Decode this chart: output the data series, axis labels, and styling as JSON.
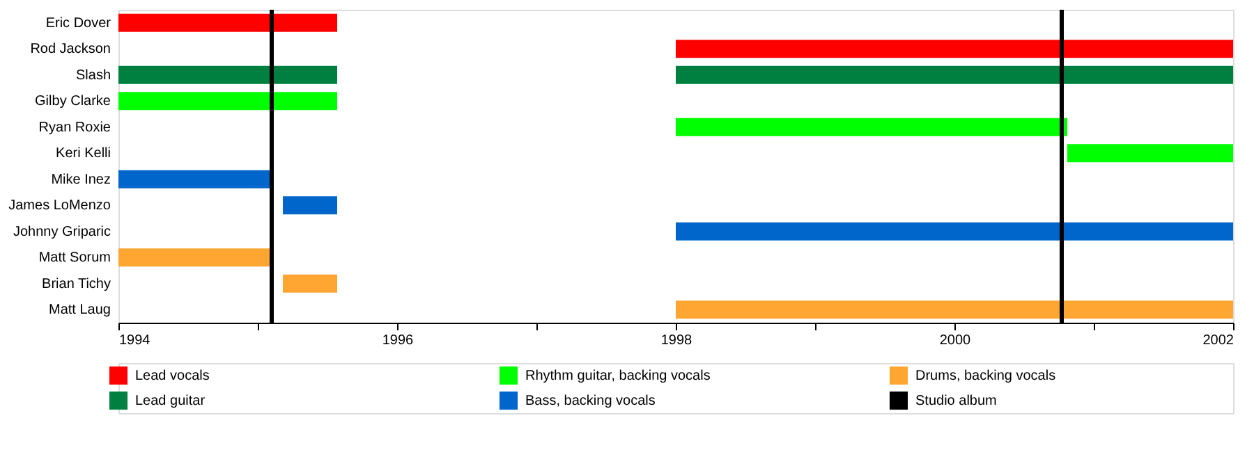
{
  "chart_data": {
    "type": "bar",
    "orientation": "horizontal",
    "categories": [
      "Eric Dover",
      "Rod Jackson",
      "Slash",
      "Gilby Clarke",
      "Ryan Roxie",
      "Keri Kelli",
      "Mike Inez",
      "James LoMenzo",
      "Johnny Griparic",
      "Matt Sorum",
      "Brian Tichy",
      "Matt Laug"
    ],
    "series": [
      {
        "name": "Lead vocals",
        "color": "#ff0000",
        "values": [
          1.57,
          4,
          null,
          null,
          null,
          null,
          null,
          null,
          null,
          null,
          null,
          null
        ],
        "base": [
          1994,
          1998,
          null,
          null,
          null,
          null,
          null,
          null,
          null,
          null,
          null,
          null
        ]
      },
      {
        "name": "Lead guitar",
        "color": "#008040",
        "values": [
          null,
          null,
          1.57,
          null,
          null,
          null,
          null,
          null,
          null,
          null,
          null,
          null
        ],
        "base": [
          null,
          null,
          1994,
          null,
          null,
          null,
          null,
          null,
          null,
          null,
          null,
          null
        ]
      },
      {
        "color": "#008040",
        "values": [
          null,
          null,
          4,
          null,
          null,
          null,
          null,
          null,
          null,
          null,
          null,
          null
        ],
        "base": [
          null,
          null,
          1998,
          null,
          null,
          null,
          null,
          null,
          null,
          null,
          null,
          null
        ]
      },
      {
        "name": "Rhythm guitar, backing vocals",
        "color": "#00ff00",
        "values": [
          null,
          null,
          null,
          1.57,
          2.81,
          1.19,
          null,
          null,
          null,
          null,
          null,
          null
        ],
        "base": [
          null,
          null,
          null,
          1994,
          1998,
          2000.81,
          null,
          null,
          null,
          null,
          null,
          null
        ]
      },
      {
        "name": "Bass, backing vocals",
        "color": "#0066cc",
        "values": [
          null,
          null,
          null,
          null,
          null,
          null,
          1.1,
          0.39,
          4,
          null,
          null,
          null
        ],
        "base": [
          null,
          null,
          null,
          null,
          null,
          null,
          1994,
          1995.18,
          1998,
          null,
          null,
          null
        ]
      },
      {
        "name": "Drums, backing vocals",
        "color": "#ffa632",
        "values": [
          null,
          null,
          null,
          null,
          null,
          null,
          null,
          null,
          null,
          1.1,
          0.39,
          4
        ],
        "base": [
          null,
          null,
          null,
          null,
          null,
          null,
          null,
          null,
          null,
          1994,
          1995.18,
          1998
        ]
      }
    ],
    "ref_lines": [
      {
        "axis": "x",
        "value": 1995.1,
        "label": "Studio album",
        "color": "#000000"
      },
      {
        "axis": "x",
        "value": 2000.77,
        "color": "#000000"
      }
    ],
    "xlim": [
      1994,
      2002
    ],
    "xticks": [
      1994,
      {
        "value": 1995,
        "label": null
      },
      1996,
      {
        "value": 1997,
        "label": null
      },
      1998,
      {
        "value": 1999,
        "label": null
      },
      2000,
      {
        "value": 2001,
        "label": null
      },
      2002
    ],
    "grid": false,
    "legend": "bottom"
  }
}
